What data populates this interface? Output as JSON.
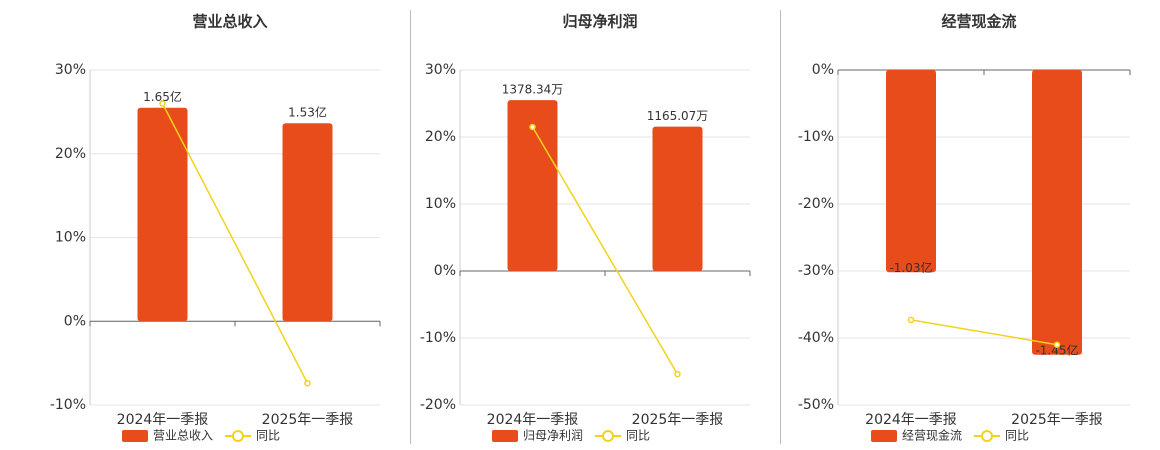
{
  "chart_data": [
    {
      "type": "bar",
      "title": "营业总收入",
      "categories": [
        "2024年一季报",
        "2025年一季报"
      ],
      "series": [
        {
          "name": "营业总收入",
          "color": "#e84c1b",
          "values": [
            1.65,
            1.53
          ],
          "value_labels": [
            "1.65亿",
            "1.53亿"
          ]
        },
        {
          "name": "同比",
          "type": "line",
          "color": "#f2d31b",
          "values": [
            26.0,
            -7.4
          ]
        }
      ],
      "ylim": [
        -10,
        30
      ],
      "yticks": [
        {
          "value": -10,
          "label": "-10%"
        },
        {
          "value": 0,
          "label": "0%"
        },
        {
          "value": 10,
          "label": "10%"
        },
        {
          "value": 20,
          "label": "20%"
        },
        {
          "value": 30,
          "label": "30%"
        }
      ],
      "grid": true
    },
    {
      "type": "bar",
      "title": "归母净利润",
      "categories": [
        "2024年一季报",
        "2025年一季报"
      ],
      "series": [
        {
          "name": "归母净利润",
          "color": "#e84c1b",
          "values": [
            1378.34,
            1165.07
          ],
          "value_labels": [
            "1378.34万",
            "1165.07万"
          ]
        },
        {
          "name": "同比",
          "type": "line",
          "color": "#f2d31b",
          "values": [
            21.5,
            -15.4
          ]
        }
      ],
      "ylim": [
        -20,
        30
      ],
      "yticks": [
        {
          "value": -20,
          "label": "-20%"
        },
        {
          "value": -10,
          "label": "-10%"
        },
        {
          "value": 0,
          "label": "0%"
        },
        {
          "value": 10,
          "label": "10%"
        },
        {
          "value": 20,
          "label": "20%"
        },
        {
          "value": 30,
          "label": "30%"
        }
      ],
      "grid": true
    },
    {
      "type": "bar",
      "title": "经营现金流",
      "categories": [
        "2024年一季报",
        "2025年一季报"
      ],
      "series": [
        {
          "name": "经营现金流",
          "color": "#e84c1b",
          "values": [
            -1.03,
            -1.45
          ],
          "value_labels": [
            "-1.03亿",
            "-1.45亿"
          ]
        },
        {
          "name": "同比",
          "type": "line",
          "color": "#f2d31b",
          "values": [
            -37.3,
            -41.0
          ]
        }
      ],
      "ylim": [
        -50,
        0
      ],
      "yticks": [
        {
          "value": -50,
          "label": "-50%"
        },
        {
          "value": -40,
          "label": "-40%"
        },
        {
          "value": -30,
          "label": "-30%"
        },
        {
          "value": -20,
          "label": "-20%"
        },
        {
          "value": -10,
          "label": "-10%"
        },
        {
          "value": 0,
          "label": "0%"
        }
      ],
      "grid": true
    }
  ]
}
